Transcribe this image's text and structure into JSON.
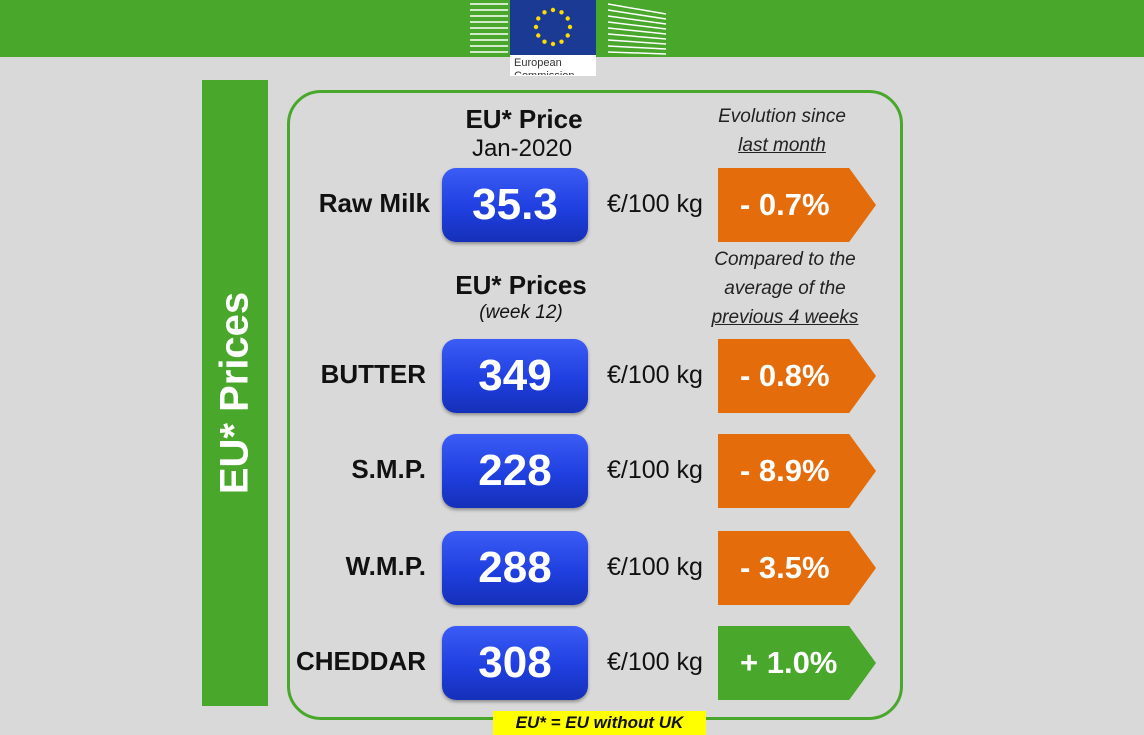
{
  "header": {
    "logo_text": "European Commission"
  },
  "side_label": "EU* Prices",
  "milk_section": {
    "title": "EU* Price",
    "period": "Jan-2020",
    "note_lines": [
      "Evolution since",
      "last month"
    ]
  },
  "product_section": {
    "title": "EU* Prices",
    "period": "(week 12)",
    "note_lines": [
      "Compared to the",
      "average of the",
      "previous 4 weeks"
    ]
  },
  "rows": [
    {
      "product": "Raw Milk",
      "price": "35.3",
      "unit": "€/100 kg",
      "change": "- 0.7%",
      "color": "#e46c0a"
    },
    {
      "product": "BUTTER",
      "price": "349",
      "unit": "€/100 kg",
      "change": "- 0.8%",
      "color": "#e46c0a"
    },
    {
      "product": "S.M.P.",
      "price": "228",
      "unit": "€/100 kg",
      "change": "- 8.9%",
      "color": "#e46c0a"
    },
    {
      "product": "W.M.P.",
      "price": "288",
      "unit": "€/100 kg",
      "change": "- 3.5%",
      "color": "#e46c0a"
    },
    {
      "product": "CHEDDAR",
      "price": "308",
      "unit": "€/100 kg",
      "change": "+ 1.0%",
      "color": "#49a72b"
    }
  ],
  "footnote": "EU* = EU without UK"
}
